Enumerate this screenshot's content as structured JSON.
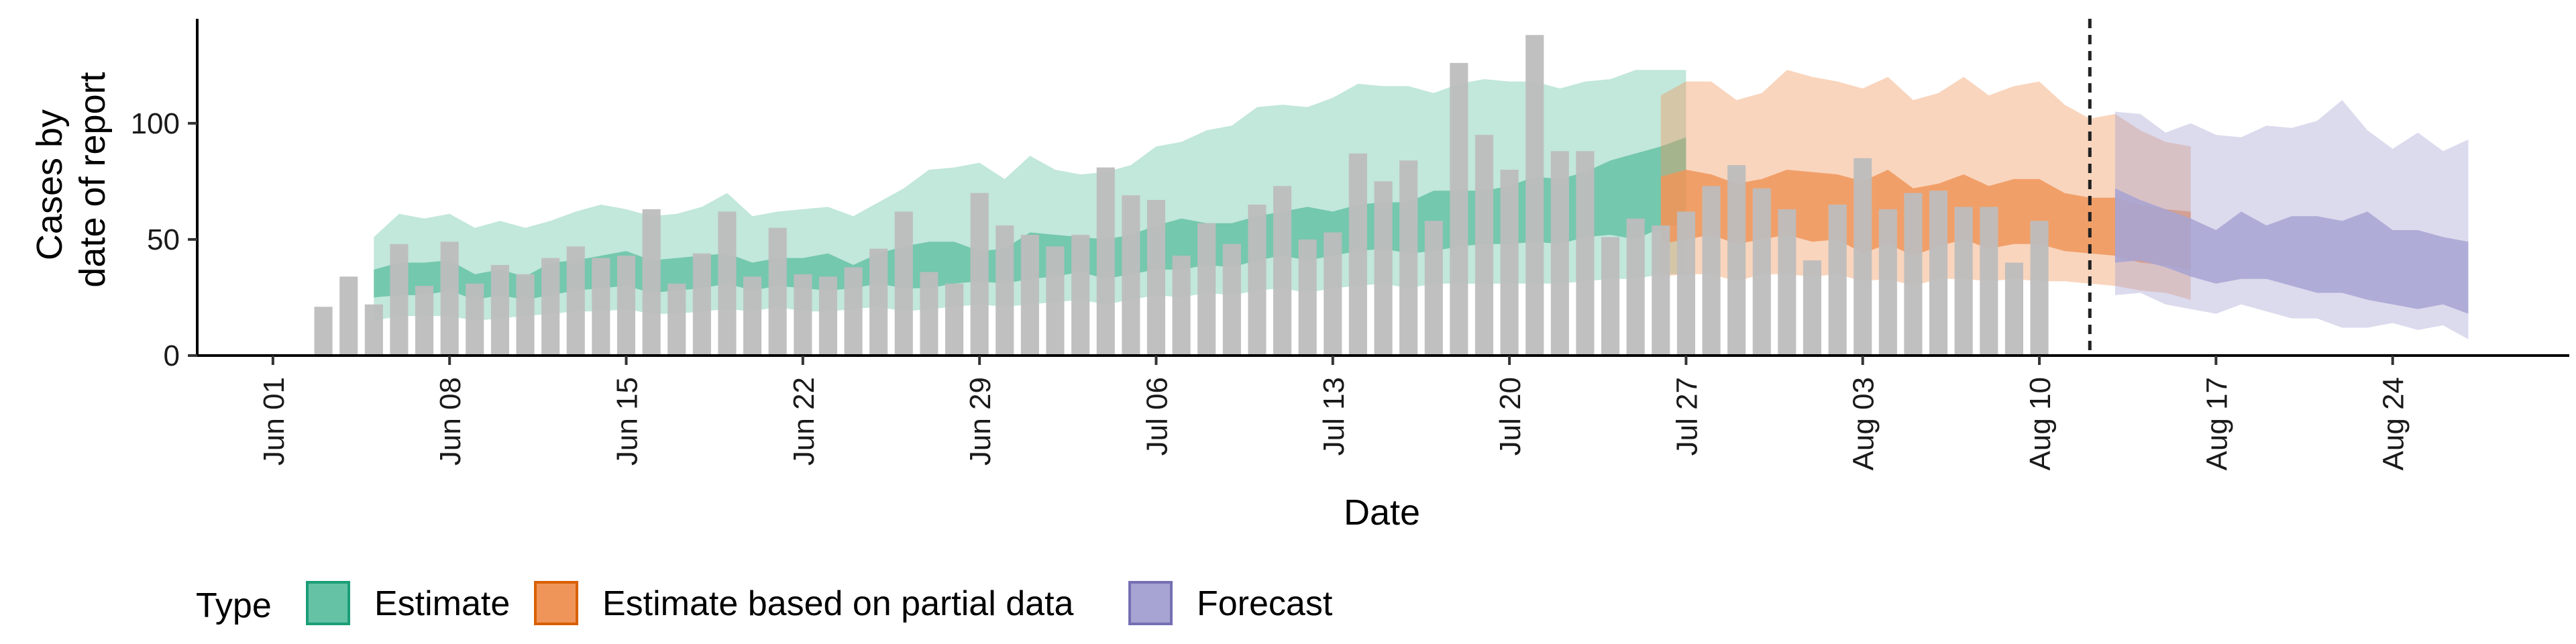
{
  "chart_data": {
    "type": "bar",
    "xlabel": "Date",
    "ylabel": [
      "Cases by",
      "date of report"
    ],
    "ylim": [
      0,
      145
    ],
    "yticks": [
      0,
      50,
      100
    ],
    "xlim": [
      "2020-05-29",
      "2020-08-31"
    ],
    "xticks": [
      {
        "date": "2020-06-01",
        "label": "Jun 01"
      },
      {
        "date": "2020-06-08",
        "label": "Jun 08"
      },
      {
        "date": "2020-06-15",
        "label": "Jun 15"
      },
      {
        "date": "2020-06-22",
        "label": "Jun 22"
      },
      {
        "date": "2020-06-29",
        "label": "Jun 29"
      },
      {
        "date": "2020-07-06",
        "label": "Jul 06"
      },
      {
        "date": "2020-07-13",
        "label": "Jul 13"
      },
      {
        "date": "2020-07-20",
        "label": "Jul 20"
      },
      {
        "date": "2020-07-27",
        "label": "Jul 27"
      },
      {
        "date": "2020-08-03",
        "label": "Aug 03"
      },
      {
        "date": "2020-08-10",
        "label": "Aug 10"
      },
      {
        "date": "2020-08-17",
        "label": "Aug 17"
      },
      {
        "date": "2020-08-24",
        "label": "Aug 24"
      }
    ],
    "grid": false,
    "legend": {
      "placement": "bottom",
      "title": "Type",
      "entries": [
        {
          "label": "Estimate",
          "color": "#66c2a5",
          "border": "#1b9e77"
        },
        {
          "label": "Estimate based on partial data",
          "color": "#f0955a",
          "border": "#d95f02"
        },
        {
          "label": "Forecast",
          "color": "#a7a3d2",
          "border": "#7570b3"
        }
      ]
    },
    "vline_date": "2020-08-12",
    "bars": {
      "name": "Reported cases",
      "color": "#bdbdbd",
      "start_date": "2020-06-03",
      "values": [
        21,
        34,
        22,
        48,
        30,
        49,
        31,
        39,
        35,
        42,
        47,
        42,
        43,
        63,
        31,
        44,
        62,
        34,
        55,
        35,
        34,
        38,
        46,
        62,
        36,
        31,
        70,
        56,
        52,
        47,
        52,
        81,
        69,
        67,
        43,
        57,
        48,
        65,
        73,
        50,
        53,
        87,
        75,
        84,
        58,
        126,
        95,
        80,
        138,
        88,
        88,
        51,
        59,
        56,
        62,
        73,
        82,
        72,
        63,
        41,
        65,
        85,
        63,
        70,
        71,
        64,
        64,
        40,
        58
      ]
    },
    "bands": [
      {
        "type": "Estimate",
        "start_date": "2020-06-05",
        "outer_low": [
          15,
          17,
          17,
          17,
          15,
          16,
          17,
          18,
          19,
          19,
          20,
          18,
          18,
          19,
          20,
          19,
          21,
          19,
          19,
          20,
          21,
          19,
          20,
          21,
          22,
          21,
          22,
          23,
          24,
          22,
          24,
          26,
          25,
          27,
          26,
          28,
          29,
          27,
          29,
          30,
          31,
          29,
          31,
          31,
          31,
          31,
          31,
          31,
          32,
          33,
          33,
          35,
          35
        ],
        "inner_low": [
          25,
          26,
          26,
          28,
          24,
          26,
          24,
          26,
          28,
          29,
          30,
          27,
          28,
          29,
          31,
          28,
          30,
          29,
          28,
          29,
          31,
          29,
          29,
          31,
          32,
          31,
          33,
          34,
          36,
          33,
          35,
          37,
          37,
          39,
          38,
          41,
          43,
          41,
          43,
          45,
          46,
          44,
          45,
          47,
          48,
          48,
          49,
          48,
          51,
          52,
          50,
          55,
          57
        ],
        "inner_high": [
          37,
          40,
          40,
          41,
          35,
          37,
          34,
          40,
          41,
          43,
          45,
          41,
          42,
          43,
          44,
          40,
          42,
          42,
          44,
          39,
          44,
          47,
          49,
          49,
          45,
          46,
          53,
          52,
          51,
          50,
          52,
          56,
          59,
          57,
          57,
          60,
          62,
          64,
          62,
          65,
          66,
          66,
          71,
          71,
          71,
          73,
          77,
          76,
          79,
          84,
          87,
          90,
          94
        ],
        "outer_high": [
          51,
          61,
          59,
          61,
          55,
          58,
          55,
          58,
          62,
          65,
          63,
          60,
          61,
          64,
          70,
          60,
          62,
          63,
          64,
          60,
          66,
          72,
          80,
          81,
          83,
          76,
          86,
          80,
          78,
          79,
          82,
          90,
          92,
          97,
          99,
          107,
          108,
          107,
          111,
          117,
          116,
          116,
          113,
          117,
          119,
          118,
          118,
          115,
          118,
          119,
          123,
          123,
          123
        ]
      },
      {
        "type": "Estimate based on partial data",
        "start_date": "2020-07-26",
        "outer_low": [
          34,
          35,
          35,
          32,
          35,
          35,
          34,
          35,
          32,
          33,
          30,
          33,
          33,
          32,
          33,
          32,
          32,
          31,
          30,
          28,
          27,
          24
        ],
        "inner_low": [
          48,
          50,
          52,
          48,
          50,
          52,
          49,
          50,
          44,
          48,
          43,
          47,
          50,
          46,
          48,
          48,
          45,
          44,
          43,
          40,
          39,
          37
        ],
        "inner_high": [
          77,
          80,
          78,
          74,
          76,
          80,
          79,
          78,
          75,
          80,
          72,
          74,
          78,
          73,
          76,
          76,
          70,
          68,
          68,
          65,
          63,
          62
        ],
        "outer_high": [
          112,
          118,
          118,
          110,
          113,
          123,
          120,
          118,
          115,
          120,
          110,
          113,
          120,
          112,
          116,
          118,
          108,
          102,
          104,
          97,
          92,
          90
        ]
      },
      {
        "type": "Forecast",
        "start_date": "2020-08-13",
        "outer_low": [
          26,
          27,
          22,
          20,
          18,
          22,
          19,
          16,
          16,
          12,
          12,
          14,
          11,
          13,
          7
        ],
        "inner_low": [
          40,
          41,
          38,
          34,
          31,
          33,
          33,
          30,
          27,
          27,
          24,
          22,
          20,
          22,
          18
        ],
        "inner_high": [
          72,
          67,
          63,
          59,
          54,
          62,
          56,
          60,
          60,
          58,
          62,
          54,
          54,
          51,
          49
        ],
        "outer_high": [
          105,
          104,
          96,
          100,
          95,
          94,
          99,
          98,
          101,
          110,
          97,
          89,
          96,
          88,
          93
        ]
      }
    ]
  }
}
